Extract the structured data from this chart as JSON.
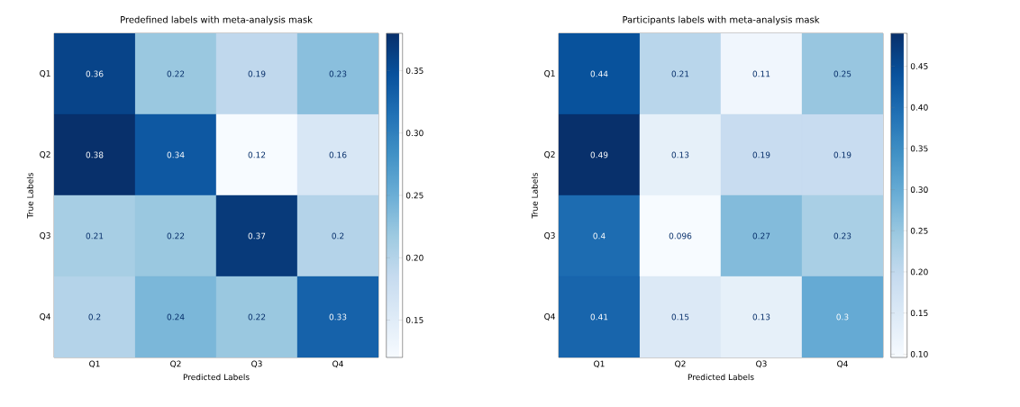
{
  "chart_data": [
    {
      "type": "heatmap",
      "title": "Predefined labels with meta-analysis mask",
      "xlabel": "Predicted Labels",
      "ylabel": "True Labels",
      "categories": [
        "Q1",
        "Q2",
        "Q3",
        "Q4"
      ],
      "y_categories": [
        "Q1",
        "Q2",
        "Q3",
        "Q4"
      ],
      "cells": [
        [
          0.36,
          0.22,
          0.19,
          0.23
        ],
        [
          0.38,
          0.34,
          0.12,
          0.16
        ],
        [
          0.21,
          0.22,
          0.37,
          0.2
        ],
        [
          0.2,
          0.24,
          0.22,
          0.33
        ]
      ],
      "data_labels": true,
      "clim": [
        0.12,
        0.38
      ],
      "cticks": [
        0.15,
        {
          "value": 0.2,
          "label": "0.20"
        },
        0.25,
        {
          "value": 0.3,
          "label": "0.30"
        },
        0.35
      ]
    },
    {
      "type": "heatmap",
      "title": "Participants labels with meta-analysis mask",
      "xlabel": "Predicted Labels",
      "ylabel": "True Labels",
      "categories": [
        "Q1",
        "Q2",
        "Q3",
        "Q4"
      ],
      "y_categories": [
        "Q1",
        "Q2",
        "Q3",
        "Q4"
      ],
      "cells": [
        [
          0.44,
          0.21,
          0.11,
          0.25
        ],
        [
          0.49,
          0.13,
          0.19,
          0.19
        ],
        [
          0.4,
          0.096,
          0.27,
          0.23
        ],
        [
          0.41,
          0.15,
          0.13,
          0.3
        ]
      ],
      "data_labels": true,
      "clim": [
        0.096,
        0.49
      ],
      "cticks": [
        {
          "value": 0.1,
          "label": "0.10"
        },
        0.15,
        {
          "value": 0.2,
          "label": "0.20"
        },
        0.25,
        {
          "value": 0.3,
          "label": "0.30"
        },
        0.35,
        {
          "value": 0.4,
          "label": "0.40"
        },
        0.45
      ]
    }
  ]
}
